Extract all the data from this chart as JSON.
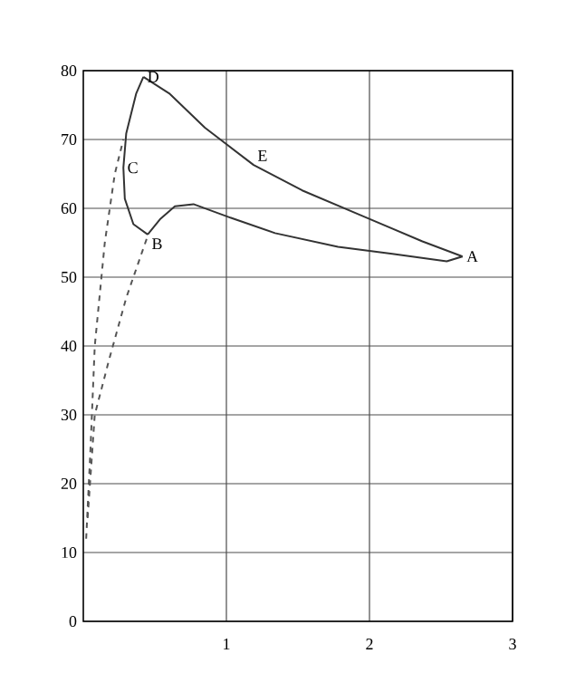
{
  "chart_data": {
    "type": "line",
    "xlim": [
      0,
      3
    ],
    "ylim": [
      0,
      80
    ],
    "xticks": [
      1,
      2,
      3
    ],
    "yticks": [
      0,
      10,
      20,
      30,
      40,
      50,
      60,
      70,
      80
    ],
    "grid": true,
    "marker": "none",
    "series": [
      {
        "color": "#333333",
        "line_style": "solid",
        "x": [
          2.65,
          2.54,
          2.16,
          1.78,
          1.34,
          1.02,
          0.77,
          0.64,
          0.54,
          0.45
        ],
        "values": [
          53,
          52.3,
          53.4,
          54.4,
          56.4,
          58.7,
          60.6,
          60.3,
          58.5,
          56.2
        ]
      },
      {
        "color": "#333333",
        "line_style": "solid",
        "x": [
          0.45,
          0.35,
          0.29,
          0.28,
          0.3,
          0.37,
          0.42
        ],
        "values": [
          56.2,
          57.7,
          61.4,
          65.9,
          70.9,
          76.7,
          79.1
        ]
      },
      {
        "color": "#333333",
        "line_style": "solid",
        "x": [
          0.42,
          0.6,
          0.85,
          1.19,
          1.53,
          1.95,
          2.37,
          2.65
        ],
        "values": [
          79.1,
          76.7,
          71.7,
          66.3,
          62.6,
          58.9,
          55.2,
          53
        ]
      },
      {
        "color": "#555555",
        "line_style": "dashed",
        "x": [
          0.02,
          0.05,
          0.08,
          0.15,
          0.22,
          0.28
        ],
        "values": [
          12,
          25,
          40,
          55,
          65,
          70
        ]
      },
      {
        "color": "#555555",
        "line_style": "dashed",
        "x": [
          0.03,
          0.08,
          0.18,
          0.3,
          0.45
        ],
        "values": [
          15,
          30,
          38,
          47,
          56
        ]
      }
    ],
    "annotations": [
      {
        "text": "A",
        "x": 2.65,
        "y": 53
      },
      {
        "text": "B",
        "x": 0.45,
        "y": 56.2
      },
      {
        "text": "C",
        "x": 0.28,
        "y": 65.9
      },
      {
        "text": "D",
        "x": 0.42,
        "y": 79.1
      },
      {
        "text": "E",
        "x": 1.19,
        "y": 66.3
      }
    ]
  }
}
